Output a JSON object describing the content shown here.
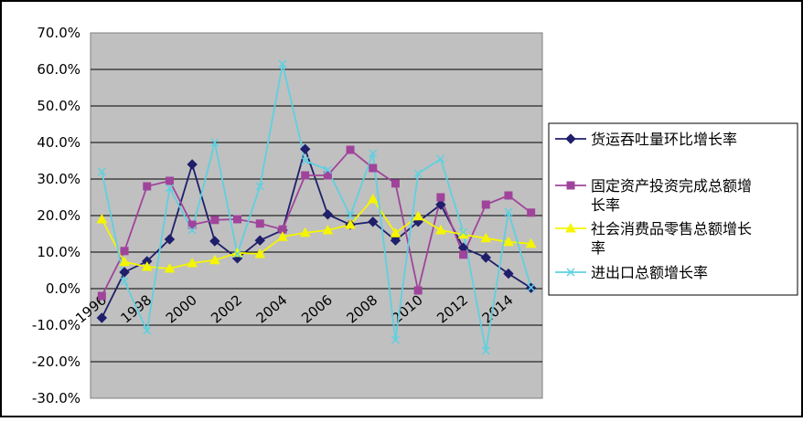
{
  "chart_data": {
    "type": "line",
    "title": "",
    "xlabel": "",
    "ylabel": "",
    "ylim": [
      -30,
      70
    ],
    "yticks": [
      "70.0%",
      "60.0%",
      "50.0%",
      "40.0%",
      "30.0%",
      "20.0%",
      "10.0%",
      "0.0%",
      "-10.0%",
      "-20.0%",
      "-30.0%"
    ],
    "ytick_values": [
      70,
      60,
      50,
      40,
      30,
      20,
      10,
      0,
      -10,
      -20,
      -30
    ],
    "x": [
      1996,
      1997,
      1998,
      1999,
      2000,
      2001,
      2002,
      2003,
      2004,
      2005,
      2006,
      2007,
      2008,
      2009,
      2010,
      2011,
      2012,
      2013,
      2014,
      2015
    ],
    "xtick_labels": [
      "1996",
      "1998",
      "2000",
      "2002",
      "2004",
      "2006",
      "2008",
      "2010",
      "2012",
      "2014"
    ],
    "grid": true,
    "plot_background": "#c0c0c0",
    "legend_position": "right",
    "series": [
      {
        "name": "货运吞吐量环比增长率",
        "color": "#1f1f6b",
        "marker": "diamond",
        "values": [
          -8,
          4.5,
          7.5,
          13.5,
          34,
          13,
          8.3,
          13.2,
          16,
          38.2,
          20.3,
          17.5,
          18.3,
          13.2,
          18.3,
          23,
          11.2,
          8.5,
          4.1,
          0.2
        ]
      },
      {
        "name": "固定资产投资完成总额增长率",
        "color": "#a0449b",
        "marker": "square",
        "values": [
          -2,
          10.3,
          28,
          29.5,
          17.5,
          18.8,
          19,
          17.8,
          16.2,
          31,
          31,
          38,
          33,
          28.8,
          -0.5,
          25,
          9.3,
          23,
          25.5,
          20.8
        ]
      },
      {
        "name": "社会消费品零售总额增长率",
        "color": "#f5f500",
        "marker": "triangle",
        "values": [
          19,
          7.3,
          6,
          5.5,
          7,
          7.8,
          9.8,
          9.5,
          14.2,
          15.3,
          16,
          17.5,
          24.5,
          15.2,
          19.8,
          16,
          14.8,
          13.8,
          12.8,
          12.3
        ]
      },
      {
        "name": "进出口总额增长率",
        "color": "#5fd0e0",
        "marker": "x",
        "values": [
          32,
          2,
          -11.5,
          27.5,
          16,
          40,
          9.5,
          28,
          61.5,
          35,
          32.5,
          20,
          37,
          -14,
          31.5,
          35.5,
          15.5,
          -17,
          21,
          0.3
        ]
      }
    ]
  }
}
